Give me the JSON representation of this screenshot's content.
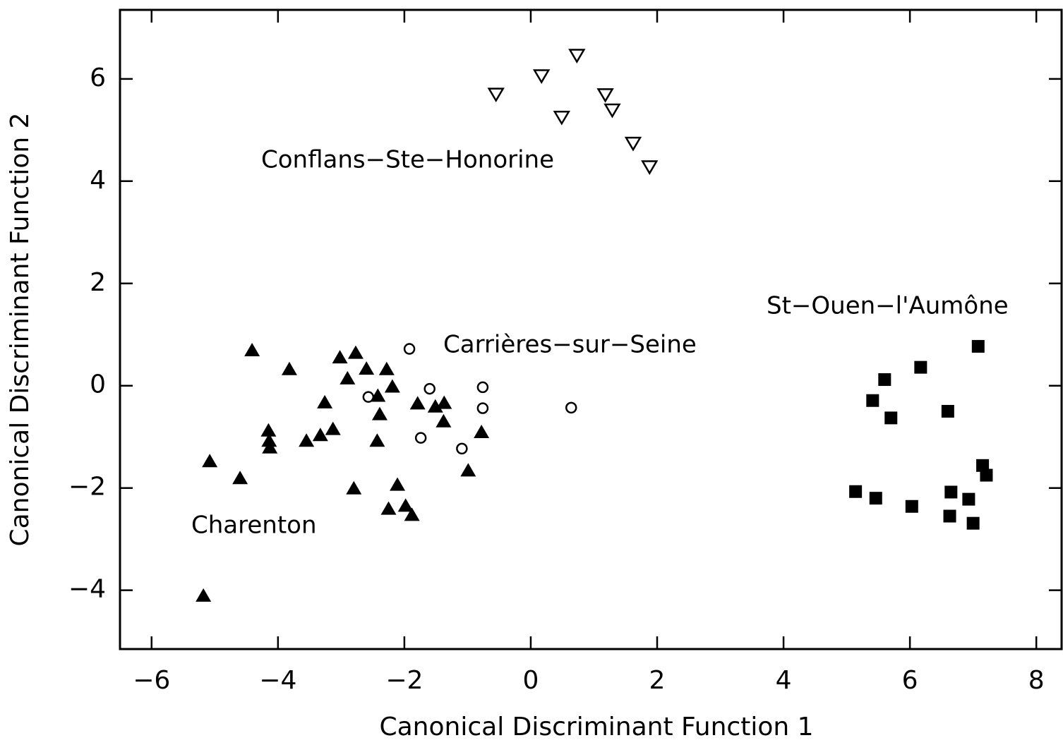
{
  "chart_data": {
    "type": "scatter",
    "xlabel": "Canonical Discriminant Function 1",
    "ylabel": "Canonical Discriminant Function 2",
    "xlim": [
      -6.5,
      8.4
    ],
    "ylim": [
      -5.15,
      7.35
    ],
    "xticks": [
      {
        "value": -6,
        "label": "−6"
      },
      {
        "value": -4,
        "label": "−4"
      },
      {
        "value": -2,
        "label": "−2"
      },
      0,
      2,
      4,
      6,
      8
    ],
    "yticks": [
      {
        "value": -4,
        "label": "−4"
      },
      {
        "value": -2,
        "label": "−2"
      },
      0,
      2,
      4,
      6
    ],
    "series": [
      {
        "name": "Conflans−Ste−Honorine",
        "color": "#000000",
        "marker": "triangle-down-open",
        "x": [
          -0.55,
          0.17,
          0.73,
          0.49,
          1.18,
          1.29,
          1.62,
          1.88
        ],
        "values": [
          5.7,
          6.06,
          6.46,
          5.25,
          5.69,
          5.39,
          4.74,
          4.28
        ]
      },
      {
        "name": "St−Ouen−l'Aumône",
        "color": "#000000",
        "marker": "square",
        "x": [
          7.08,
          6.17,
          5.6,
          5.41,
          5.7,
          6.6,
          7.15,
          7.21,
          5.14,
          5.46,
          6.03,
          6.65,
          6.93,
          6.63,
          7.0
        ],
        "values": [
          0.77,
          0.36,
          0.12,
          -0.29,
          -0.63,
          -0.5,
          -1.56,
          -1.75,
          -2.07,
          -2.2,
          -2.36,
          -2.08,
          -2.22,
          -2.55,
          -2.69
        ]
      },
      {
        "name": "Carrières−sur−Seine",
        "color": "#000000",
        "marker": "circle-open",
        "x": [
          -1.92,
          -2.57,
          -1.6,
          -0.76,
          -0.76,
          -1.74,
          -1.09,
          0.64
        ],
        "values": [
          0.72,
          -0.22,
          -0.06,
          -0.03,
          -0.44,
          -1.02,
          -1.23,
          -0.43
        ]
      },
      {
        "name": "Charenton",
        "color": "#000000",
        "marker": "triangle",
        "x": [
          -4.41,
          -3.82,
          -3.02,
          -2.77,
          -2.6,
          -2.28,
          -2.9,
          -2.19,
          -2.42,
          -2.39,
          -3.26,
          -1.79,
          -1.51,
          -1.37,
          -1.38,
          -3.13,
          -3.33,
          -3.55,
          -4.15,
          -4.14,
          -4.13,
          -2.43,
          -0.78,
          -5.08,
          -4.6,
          -2.8,
          -2.11,
          -0.99,
          -2.25,
          -1.98,
          -1.88,
          -5.18
        ],
        "values": [
          0.7,
          0.33,
          0.56,
          0.65,
          0.34,
          0.33,
          0.15,
          -0.01,
          -0.19,
          -0.55,
          -0.32,
          -0.34,
          -0.4,
          -0.33,
          -0.69,
          -0.84,
          -0.96,
          -1.07,
          -0.87,
          -1.07,
          -1.2,
          -1.07,
          -0.9,
          -1.47,
          -1.8,
          -2.0,
          -1.93,
          -1.65,
          -2.4,
          -2.34,
          -2.52,
          -4.1
        ]
      }
    ]
  }
}
